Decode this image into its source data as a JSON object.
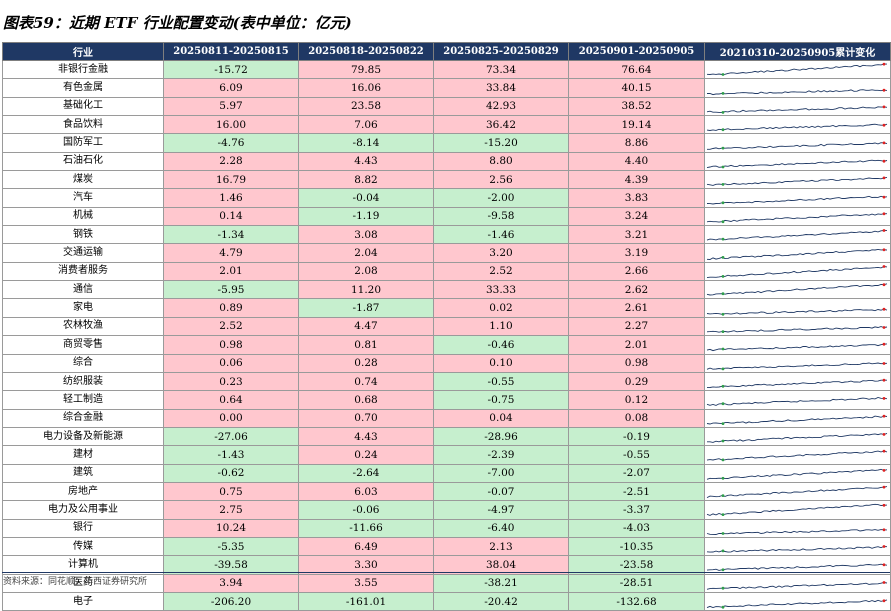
{
  "title": "图表59：近期 ETF 行业配置变动(表中单位：亿元)",
  "columns": [
    "行业",
    "20250811-20250815",
    "20250818-20250822",
    "20250825-20250829",
    "20250901-20250905",
    "20210310-20250905累计变化"
  ],
  "rows": [
    {
      "industry": "非银行金融",
      "w1": "-15.72",
      "w2": "79.85",
      "w3": "73.34",
      "w4": "76.64"
    },
    {
      "industry": "有色金属",
      "w1": "6.09",
      "w2": "16.06",
      "w3": "33.84",
      "w4": "40.15"
    },
    {
      "industry": "基础化工",
      "w1": "5.97",
      "w2": "23.58",
      "w3": "42.93",
      "w4": "38.52"
    },
    {
      "industry": "食品饮料",
      "w1": "16.00",
      "w2": "7.06",
      "w3": "36.42",
      "w4": "19.14"
    },
    {
      "industry": "国防军工",
      "w1": "-4.76",
      "w2": "-8.14",
      "w3": "-15.20",
      "w4": "8.86"
    },
    {
      "industry": "石油石化",
      "w1": "2.28",
      "w2": "4.43",
      "w3": "8.80",
      "w4": "4.40"
    },
    {
      "industry": "煤炭",
      "w1": "16.79",
      "w2": "8.82",
      "w3": "2.56",
      "w4": "4.39"
    },
    {
      "industry": "汽车",
      "w1": "1.46",
      "w2": "-0.04",
      "w3": "-2.00",
      "w4": "3.83"
    },
    {
      "industry": "机械",
      "w1": "0.14",
      "w2": "-1.19",
      "w3": "-9.58",
      "w4": "3.24"
    },
    {
      "industry": "钢铁",
      "w1": "-1.34",
      "w2": "3.08",
      "w3": "-1.46",
      "w4": "3.21"
    },
    {
      "industry": "交通运输",
      "w1": "4.79",
      "w2": "2.04",
      "w3": "3.20",
      "w4": "3.19"
    },
    {
      "industry": "消费者服务",
      "w1": "2.01",
      "w2": "2.08",
      "w3": "2.52",
      "w4": "2.66"
    },
    {
      "industry": "通信",
      "w1": "-5.95",
      "w2": "11.20",
      "w3": "33.33",
      "w4": "2.62"
    },
    {
      "industry": "家电",
      "w1": "0.89",
      "w2": "-1.87",
      "w3": "0.02",
      "w4": "2.61"
    },
    {
      "industry": "农林牧渔",
      "w1": "2.52",
      "w2": "4.47",
      "w3": "1.10",
      "w4": "2.27"
    },
    {
      "industry": "商贸零售",
      "w1": "0.98",
      "w2": "0.81",
      "w3": "-0.46",
      "w4": "2.01"
    },
    {
      "industry": "综合",
      "w1": "0.06",
      "w2": "0.28",
      "w3": "0.10",
      "w4": "0.98"
    },
    {
      "industry": "纺织服装",
      "w1": "0.23",
      "w2": "0.74",
      "w3": "-0.55",
      "w4": "0.29"
    },
    {
      "industry": "轻工制造",
      "w1": "0.64",
      "w2": "0.68",
      "w3": "-0.75",
      "w4": "0.12"
    },
    {
      "industry": "综合金融",
      "w1": "0.00",
      "w2": "0.70",
      "w3": "0.04",
      "w4": "0.08"
    },
    {
      "industry": "电力设备及新能源",
      "w1": "-27.06",
      "w2": "4.43",
      "w3": "-28.96",
      "w4": "-0.19"
    },
    {
      "industry": "建材",
      "w1": "-1.43",
      "w2": "0.24",
      "w3": "-2.39",
      "w4": "-0.55"
    },
    {
      "industry": "建筑",
      "w1": "-0.62",
      "w2": "-2.64",
      "w3": "-7.00",
      "w4": "-2.07"
    },
    {
      "industry": "房地产",
      "w1": "0.75",
      "w2": "6.03",
      "w3": "-0.07",
      "w4": "-2.51"
    },
    {
      "industry": "电力及公用事业",
      "w1": "2.75",
      "w2": "-0.06",
      "w3": "-4.97",
      "w4": "-3.37"
    },
    {
      "industry": "银行",
      "w1": "10.24",
      "w2": "-11.66",
      "w3": "-6.40",
      "w4": "-4.03"
    },
    {
      "industry": "传媒",
      "w1": "-5.35",
      "w2": "6.49",
      "w3": "2.13",
      "w4": "-10.35"
    },
    {
      "industry": "计算机",
      "w1": "-39.58",
      "w2": "3.30",
      "w3": "38.04",
      "w4": "-23.58"
    },
    {
      "industry": "医药",
      "w1": "3.94",
      "w2": "3.55",
      "w3": "-38.21",
      "w4": "-28.51"
    },
    {
      "industry": "电子",
      "w1": "-206.20",
      "w2": "-161.01",
      "w3": "-20.42",
      "w4": "-132.68"
    }
  ],
  "colors": {
    "header_bg": "#1f3864",
    "positive_bg": "#ffc7ce",
    "negative_bg": "#c6efce",
    "sparkline": "#1f3864",
    "spark_min_marker": "#2e9e4a",
    "spark_max_marker": "#e02020"
  },
  "footer": "资料来源：同花顺，华西证券研究所"
}
